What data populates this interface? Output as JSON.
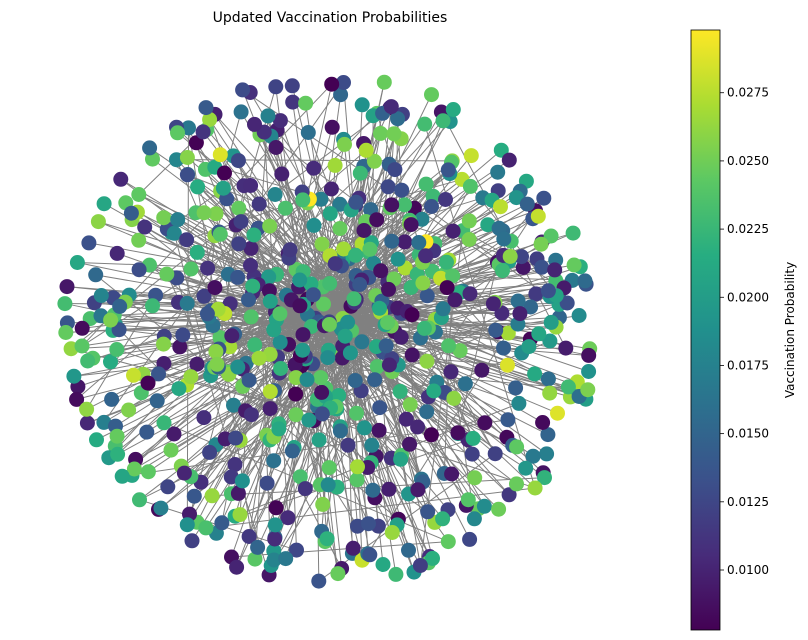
{
  "chart_data": {
    "type": "network",
    "title": "Updated Vaccination Probabilities",
    "node_count": 700,
    "edge_color": "#808080",
    "colormap": "viridis",
    "node_value_range": [
      0.0078,
      0.0298
    ],
    "colorbar": {
      "label": "Vaccination Probability",
      "placement": "right",
      "ticks": [
        "0.0100",
        "0.0125",
        "0.0150",
        "0.0175",
        "0.0200",
        "0.0225",
        "0.0250",
        "0.0275"
      ],
      "tick_values": [
        0.01,
        0.0125,
        0.015,
        0.0175,
        0.02,
        0.0225,
        0.025,
        0.0275
      ]
    }
  }
}
